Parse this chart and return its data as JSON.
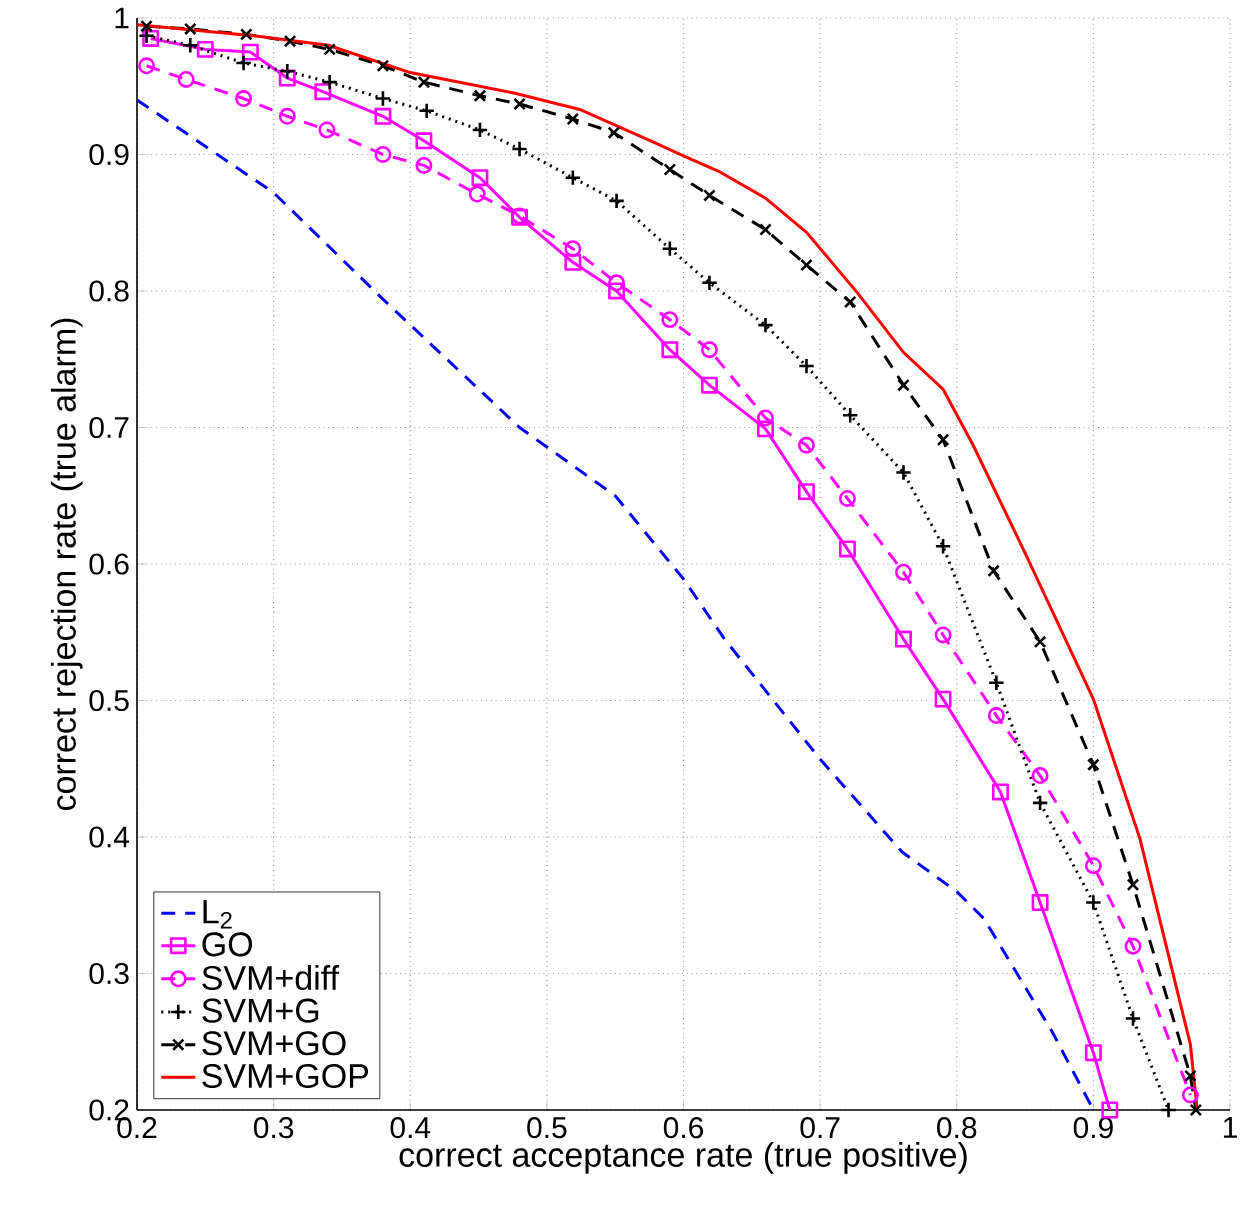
{
  "chart_data": {
    "type": "line",
    "xlabel": "correct acceptance rate (true positive)",
    "ylabel": "correct rejection rate (true alarm)",
    "xlim": [
      0.2,
      1
    ],
    "ylim": [
      0.2,
      1
    ],
    "xticks": [
      0.2,
      0.3,
      0.4,
      0.5,
      0.6,
      0.7,
      0.8,
      0.9,
      1
    ],
    "yticks": [
      0.2,
      0.3,
      0.4,
      0.5,
      0.6,
      0.7,
      0.8,
      0.9,
      1
    ],
    "grid": true,
    "legend": "bottom left",
    "series": [
      {
        "name": "L$_{2}$",
        "color": "#0000ff",
        "marker": "none",
        "line_style": "dashed",
        "x": [
          0.2,
          0.3,
          0.38,
          0.48,
          0.55,
          0.6,
          0.63,
          0.7,
          0.76,
          0.8,
          0.82,
          0.87,
          0.9
        ],
        "values": [
          0.94,
          0.872,
          0.794,
          0.7,
          0.65,
          0.589,
          0.545,
          0.457,
          0.389,
          0.36,
          0.34,
          0.257,
          0.2
        ]
      },
      {
        "name": "GO",
        "color": "#ff00ff",
        "marker": "square",
        "line_style": "solid",
        "x": [
          0.21,
          0.25,
          0.283,
          0.31,
          0.336,
          0.38,
          0.41,
          0.451,
          0.48,
          0.519,
          0.551,
          0.59,
          0.619,
          0.66,
          0.69,
          0.72,
          0.761,
          0.79,
          0.832,
          0.861,
          0.9,
          0.912
        ],
        "values": [
          0.985,
          0.977,
          0.975,
          0.956,
          0.946,
          0.928,
          0.91,
          0.883,
          0.854,
          0.821,
          0.8,
          0.757,
          0.731,
          0.699,
          0.653,
          0.611,
          0.545,
          0.501,
          0.433,
          0.352,
          0.242,
          0.2
        ]
      },
      {
        "name": "SVM+diff",
        "color": "#ff00ff",
        "marker": "circle",
        "line_style": "dashed",
        "x": [
          0.207,
          0.236,
          0.278,
          0.31,
          0.339,
          0.38,
          0.41,
          0.449,
          0.48,
          0.519,
          0.551,
          0.59,
          0.619,
          0.66,
          0.69,
          0.72,
          0.761,
          0.79,
          0.829,
          0.861,
          0.9,
          0.929,
          0.971
        ],
        "values": [
          0.965,
          0.955,
          0.941,
          0.928,
          0.918,
          0.9,
          0.892,
          0.871,
          0.855,
          0.831,
          0.806,
          0.779,
          0.757,
          0.707,
          0.687,
          0.648,
          0.594,
          0.548,
          0.489,
          0.445,
          0.379,
          0.32,
          0.211
        ]
      },
      {
        "name": "SVM+G",
        "color": "#000000",
        "marker": "plus",
        "line_style": "dotted",
        "x": [
          0.207,
          0.239,
          0.278,
          0.31,
          0.341,
          0.38,
          0.412,
          0.451,
          0.48,
          0.519,
          0.551,
          0.59,
          0.619,
          0.66,
          0.69,
          0.722,
          0.761,
          0.79,
          0.829,
          0.861,
          0.9,
          0.929,
          0.955
        ],
        "values": [
          0.987,
          0.98,
          0.967,
          0.961,
          0.953,
          0.941,
          0.932,
          0.918,
          0.904,
          0.883,
          0.866,
          0.831,
          0.806,
          0.775,
          0.745,
          0.709,
          0.667,
          0.613,
          0.513,
          0.425,
          0.352,
          0.267,
          0.2
        ]
      },
      {
        "name": "SVM+GO",
        "color": "#000000",
        "marker": "cross",
        "line_style": "dashed",
        "x": [
          0.207,
          0.239,
          0.28,
          0.312,
          0.341,
          0.38,
          0.41,
          0.451,
          0.48,
          0.519,
          0.549,
          0.59,
          0.619,
          0.66,
          0.69,
          0.722,
          0.761,
          0.79,
          0.827,
          0.861,
          0.9,
          0.929,
          0.971,
          0.975
        ],
        "values": [
          0.994,
          0.992,
          0.988,
          0.983,
          0.977,
          0.965,
          0.953,
          0.943,
          0.937,
          0.926,
          0.916,
          0.889,
          0.87,
          0.845,
          0.819,
          0.792,
          0.731,
          0.691,
          0.595,
          0.543,
          0.453,
          0.365,
          0.225,
          0.2
        ]
      },
      {
        "name": "SVM+GOP",
        "color": "#ff0000",
        "marker": "none",
        "line_style": "solid",
        "x": [
          0.2,
          0.285,
          0.34,
          0.4,
          0.476,
          0.524,
          0.578,
          0.6,
          0.627,
          0.66,
          0.69,
          0.727,
          0.761,
          0.79,
          0.812,
          0.851,
          0.9,
          0.934,
          0.971,
          0.976
        ],
        "values": [
          0.995,
          0.987,
          0.98,
          0.96,
          0.945,
          0.933,
          0.909,
          0.899,
          0.887,
          0.868,
          0.843,
          0.799,
          0.755,
          0.728,
          0.687,
          0.606,
          0.501,
          0.399,
          0.248,
          0.2
        ]
      }
    ]
  }
}
